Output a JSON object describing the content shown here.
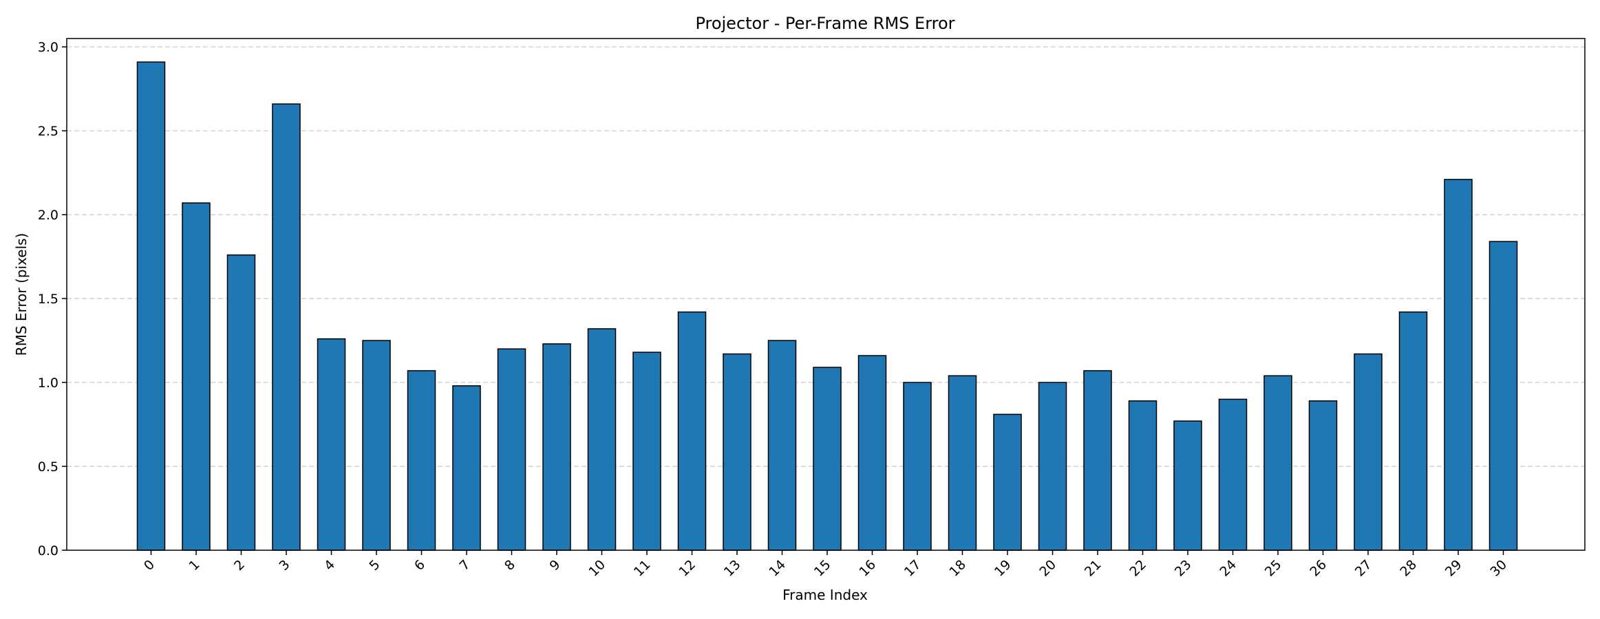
{
  "chart_data": {
    "type": "bar",
    "title": "Projector - Per-Frame RMS Error",
    "xlabel": "Frame Index",
    "ylabel": "RMS Error (pixels)",
    "ylim": [
      0,
      3.05
    ],
    "yticks": [
      "0.0",
      "0.5",
      "1.0",
      "1.5",
      "2.0",
      "2.5",
      "3.0"
    ],
    "grid": "y-dashed",
    "bar_color": "#1f77b4",
    "edge_color": "#000000",
    "categories": [
      "0",
      "1",
      "2",
      "3",
      "4",
      "5",
      "6",
      "7",
      "8",
      "9",
      "10",
      "11",
      "12",
      "13",
      "14",
      "15",
      "16",
      "17",
      "18",
      "19",
      "20",
      "21",
      "22",
      "23",
      "24",
      "25",
      "26",
      "27",
      "28",
      "29",
      "30"
    ],
    "values": [
      2.91,
      2.07,
      1.76,
      2.66,
      1.26,
      1.25,
      1.07,
      0.98,
      1.2,
      1.23,
      1.32,
      1.18,
      1.42,
      1.17,
      1.25,
      1.09,
      1.16,
      1.0,
      1.04,
      0.81,
      1.0,
      1.07,
      0.89,
      0.77,
      0.9,
      1.04,
      0.89,
      1.17,
      1.42,
      2.21,
      1.84
    ]
  }
}
